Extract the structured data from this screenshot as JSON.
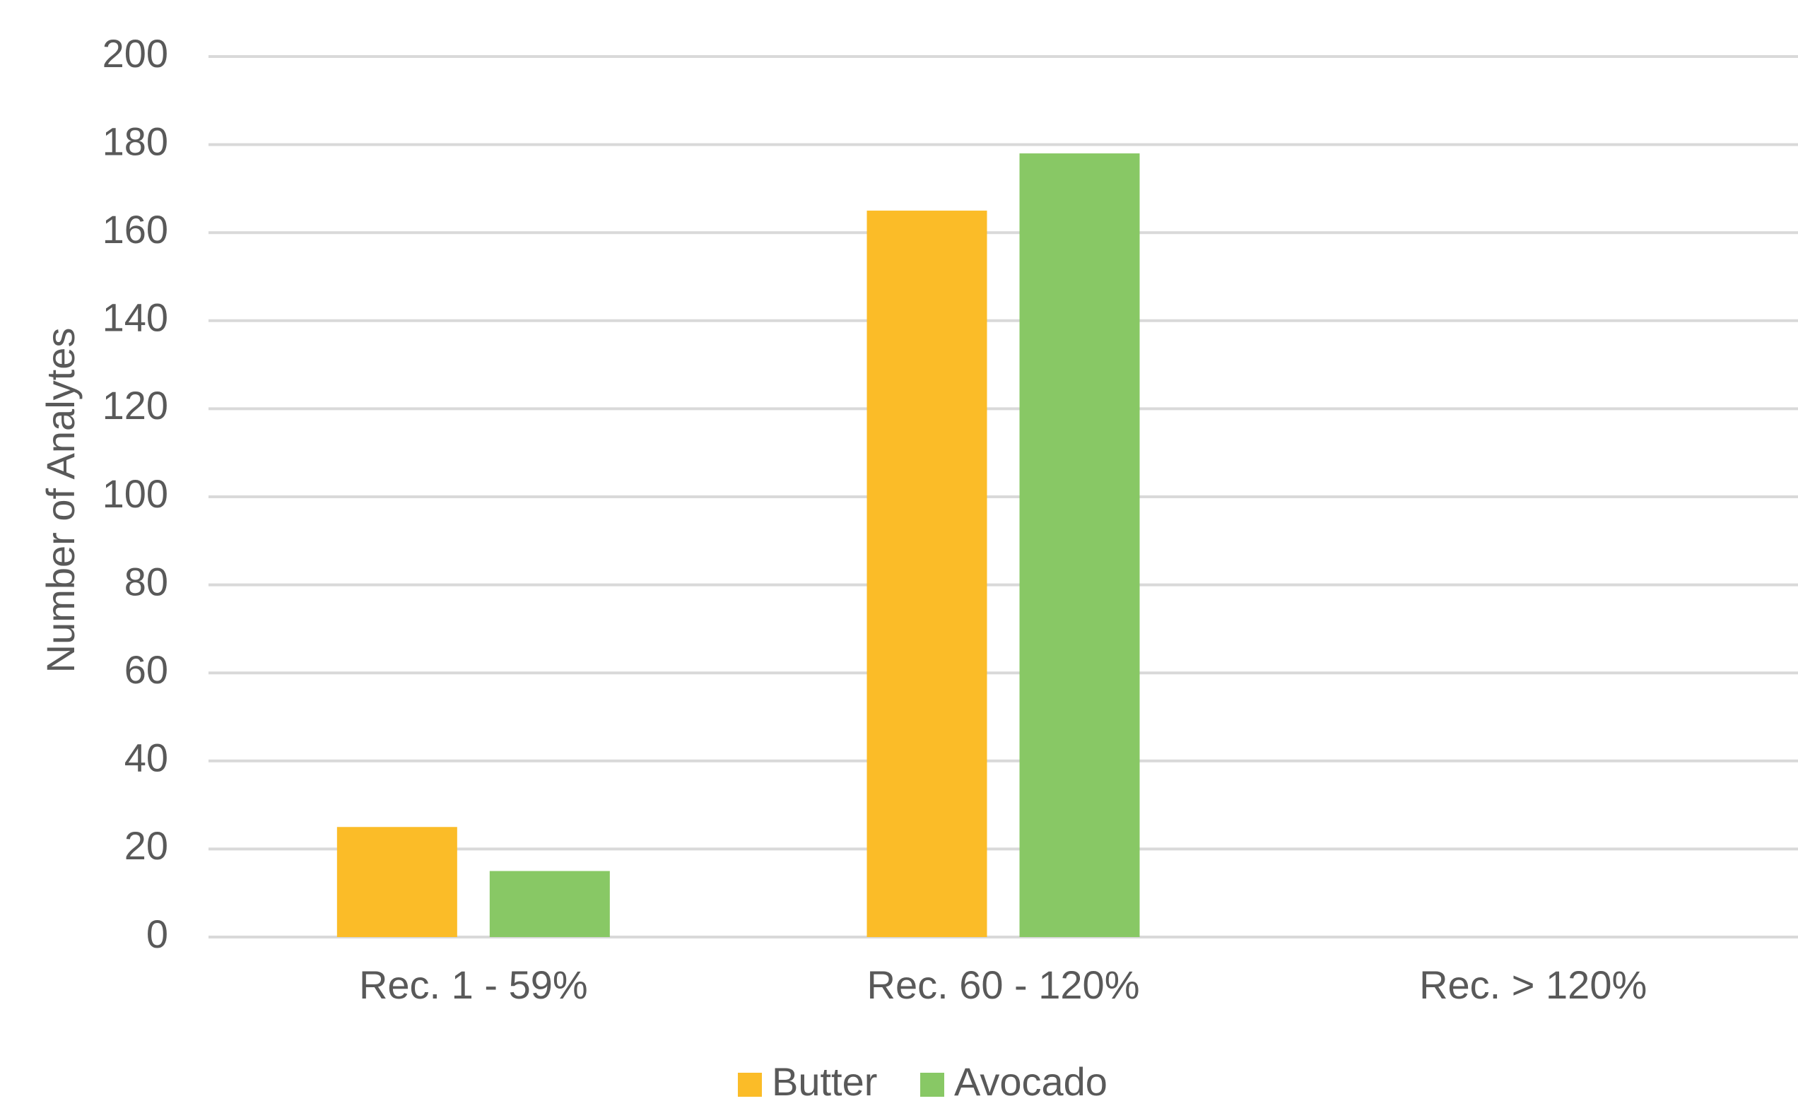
{
  "chart_data": {
    "type": "bar",
    "categories": [
      "Rec. 1 - 59%",
      "Rec. 60 - 120%",
      "Rec. > 120%"
    ],
    "series": [
      {
        "name": "Butter",
        "values": [
          25,
          165,
          0
        ],
        "color": "#FBBC28"
      },
      {
        "name": "Avocado",
        "values": [
          15,
          178,
          0
        ],
        "color": "#88C865"
      }
    ],
    "title": "",
    "xlabel": "",
    "ylabel": "Number of Analytes",
    "ylim": [
      0,
      200
    ],
    "yticks": [
      0,
      20,
      40,
      60,
      80,
      100,
      120,
      140,
      160,
      180,
      200
    ],
    "grid": true,
    "legend_position": "bottom",
    "gridline_color": "#D9D9D9"
  }
}
